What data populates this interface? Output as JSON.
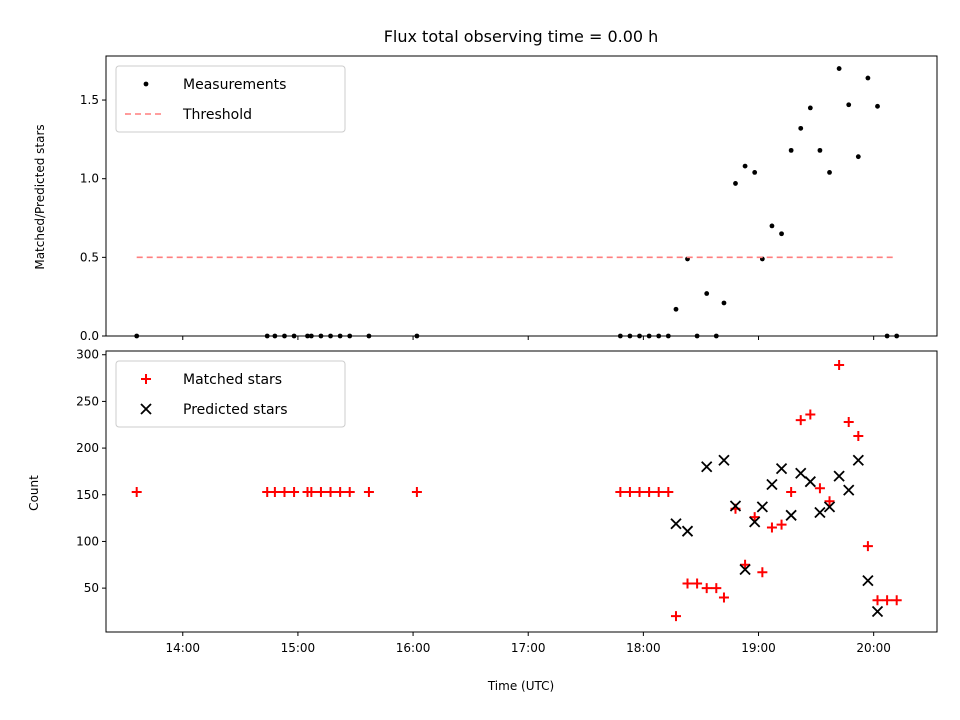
{
  "chart_data": [
    {
      "type": "scatter",
      "title": "Flux total observing time = 0.00 h",
      "xlabel": "",
      "ylabel": "Matched/Predicted stars",
      "xlim": [
        "13:20",
        "20:33"
      ],
      "ylim": [
        0,
        1.78
      ],
      "yticks": [
        "0.0",
        "0.5",
        "1.0",
        "1.5"
      ],
      "grid": false,
      "legend": "top-left",
      "series": [
        {
          "name": "Measurements",
          "marker": "dot",
          "color": "#000000",
          "points": [
            [
              "13:36",
              0
            ],
            [
              "14:44",
              0
            ],
            [
              "14:48",
              0
            ],
            [
              "14:53",
              0
            ],
            [
              "14:58",
              0
            ],
            [
              "15:05",
              0
            ],
            [
              "15:07",
              0
            ],
            [
              "15:12",
              0
            ],
            [
              "15:17",
              0
            ],
            [
              "15:22",
              0
            ],
            [
              "15:27",
              0
            ],
            [
              "15:37",
              0
            ],
            [
              "16:02",
              0
            ],
            [
              "17:48",
              0
            ],
            [
              "17:53",
              0
            ],
            [
              "17:58",
              0
            ],
            [
              "18:03",
              0
            ],
            [
              "18:08",
              0
            ],
            [
              "18:13",
              0
            ],
            [
              "18:17",
              0.17
            ],
            [
              "18:23",
              0.49
            ],
            [
              "18:28",
              0
            ],
            [
              "18:33",
              0.27
            ],
            [
              "18:38",
              0
            ],
            [
              "18:42",
              0.21
            ],
            [
              "18:48",
              0.97
            ],
            [
              "18:53",
              1.08
            ],
            [
              "18:58",
              1.04
            ],
            [
              "19:02",
              0.49
            ],
            [
              "19:07",
              0.7
            ],
            [
              "19:12",
              0.65
            ],
            [
              "19:17",
              1.18
            ],
            [
              "19:22",
              1.32
            ],
            [
              "19:27",
              1.45
            ],
            [
              "19:32",
              1.18
            ],
            [
              "19:37",
              1.04
            ],
            [
              "19:42",
              1.7
            ],
            [
              "19:47",
              1.47
            ],
            [
              "19:52",
              1.14
            ],
            [
              "19:57",
              1.64
            ],
            [
              "20:02",
              1.46
            ],
            [
              "20:07",
              0
            ],
            [
              "20:12",
              0
            ]
          ]
        },
        {
          "name": "Threshold",
          "marker": "dashed-line",
          "color": "#ff7f7f",
          "points": [
            [
              "13:36",
              0.5
            ],
            [
              "20:12",
              0.5
            ]
          ]
        }
      ]
    },
    {
      "type": "scatter",
      "title": "",
      "xlabel": "Time (UTC)",
      "ylabel": "Count",
      "xlim": [
        "13:20",
        "20:33"
      ],
      "ylim": [
        3,
        304
      ],
      "yticks": [
        "50",
        "100",
        "150",
        "200",
        "250",
        "300"
      ],
      "xticks": [
        "14:00",
        "15:00",
        "16:00",
        "17:00",
        "18:00",
        "19:00",
        "20:00"
      ],
      "grid": false,
      "legend": "top-left",
      "series": [
        {
          "name": "Matched stars",
          "marker": "+",
          "color": "#ff0000",
          "points": [
            [
              "13:36",
              153
            ],
            [
              "14:44",
              153
            ],
            [
              "14:48",
              153
            ],
            [
              "14:53",
              153
            ],
            [
              "14:58",
              153
            ],
            [
              "15:05",
              153
            ],
            [
              "15:07",
              153
            ],
            [
              "15:12",
              153
            ],
            [
              "15:17",
              153
            ],
            [
              "15:22",
              153
            ],
            [
              "15:27",
              153
            ],
            [
              "15:37",
              153
            ],
            [
              "16:02",
              153
            ],
            [
              "17:48",
              153
            ],
            [
              "17:53",
              153
            ],
            [
              "17:58",
              153
            ],
            [
              "18:03",
              153
            ],
            [
              "18:08",
              153
            ],
            [
              "18:13",
              153
            ],
            [
              "18:17",
              20
            ],
            [
              "18:23",
              55
            ],
            [
              "18:28",
              55
            ],
            [
              "18:33",
              50
            ],
            [
              "18:38",
              50
            ],
            [
              "18:42",
              40
            ],
            [
              "18:48",
              135
            ],
            [
              "18:53",
              75
            ],
            [
              "18:58",
              126
            ],
            [
              "19:02",
              67
            ],
            [
              "19:07",
              115
            ],
            [
              "19:12",
              118
            ],
            [
              "19:17",
              153
            ],
            [
              "19:22",
              230
            ],
            [
              "19:27",
              236
            ],
            [
              "19:32",
              157
            ],
            [
              "19:37",
              143
            ],
            [
              "19:42",
              289
            ],
            [
              "19:47",
              228
            ],
            [
              "19:52",
              213
            ],
            [
              "19:57",
              95
            ],
            [
              "20:02",
              37
            ],
            [
              "20:07",
              37
            ],
            [
              "20:12",
              37
            ]
          ]
        },
        {
          "name": "Predicted stars",
          "marker": "x",
          "color": "#000000",
          "points": [
            [
              "18:17",
              119
            ],
            [
              "18:23",
              111
            ],
            [
              "18:33",
              180
            ],
            [
              "18:42",
              187
            ],
            [
              "18:48",
              138
            ],
            [
              "18:53",
              70
            ],
            [
              "18:58",
              121
            ],
            [
              "19:02",
              137
            ],
            [
              "19:07",
              161
            ],
            [
              "19:12",
              178
            ],
            [
              "19:17",
              128
            ],
            [
              "19:22",
              173
            ],
            [
              "19:27",
              164
            ],
            [
              "19:32",
              131
            ],
            [
              "19:37",
              137
            ],
            [
              "19:42",
              170
            ],
            [
              "19:47",
              155
            ],
            [
              "19:52",
              187
            ],
            [
              "19:57",
              58
            ],
            [
              "20:02",
              25
            ]
          ]
        }
      ]
    }
  ]
}
